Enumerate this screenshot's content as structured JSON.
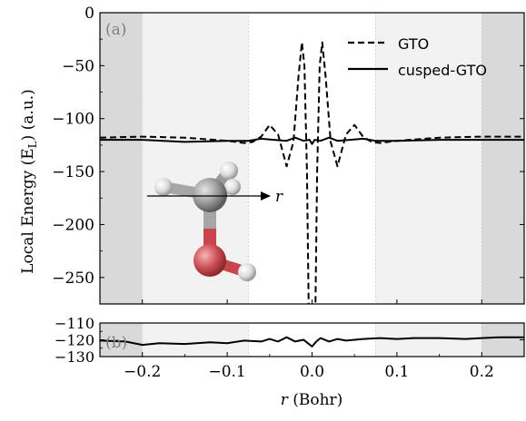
{
  "chart_data": [
    {
      "panel_label": "(a)",
      "type": "line",
      "xlim": [
        -0.25,
        0.25
      ],
      "ylim": [
        -275,
        0
      ],
      "ylabel": "Local Energy (E",
      "ylabel_sub": "L",
      "ylabel_tail": ") (a.u.)",
      "y_ticks": [
        0,
        -50,
        -100,
        -150,
        -200,
        -250
      ],
      "y_tick_labels": [
        "0",
        "−50",
        "−100",
        "−150",
        "−200",
        "−250"
      ],
      "legend_placement": "top-right",
      "shaded_regions": [
        {
          "from": -0.25,
          "to": -0.2,
          "shade": "#d9d9d9"
        },
        {
          "from": -0.2,
          "to": -0.075,
          "shade": "#f2f2f2"
        },
        {
          "from": 0.075,
          "to": 0.2,
          "shade": "#f2f2f2"
        },
        {
          "from": 0.2,
          "to": 0.25,
          "shade": "#d9d9d9"
        }
      ],
      "inset_axis_label": "r",
      "series": [
        {
          "name": "GTO",
          "style": "dashed",
          "color": "#000000",
          "x": [
            -0.25,
            -0.2,
            -0.15,
            -0.1,
            -0.08,
            -0.07,
            -0.06,
            -0.05,
            -0.04,
            -0.03,
            -0.022,
            -0.016,
            -0.012,
            -0.009,
            -0.006,
            -0.004,
            -0.002,
            0.0,
            0.002,
            0.004,
            0.006,
            0.009,
            0.012,
            0.016,
            0.022,
            0.03,
            0.04,
            0.05,
            0.06,
            0.07,
            0.08,
            0.1,
            0.15,
            0.2,
            0.25
          ],
          "y": [
            -118,
            -117,
            -118,
            -121,
            -123,
            -122,
            -117,
            -106,
            -115,
            -145,
            -122,
            -60,
            -28,
            -50,
            -150,
            -280,
            -280,
            -280,
            -280,
            -280,
            -150,
            -50,
            -28,
            -60,
            -122,
            -145,
            -115,
            -106,
            -117,
            -122,
            -123,
            -121,
            -118,
            -117,
            -117
          ]
        },
        {
          "name": "cusped-GTO",
          "style": "solid",
          "color": "#000000",
          "x": [
            -0.25,
            -0.2,
            -0.15,
            -0.1,
            -0.075,
            -0.06,
            -0.045,
            -0.03,
            -0.02,
            -0.01,
            -0.003,
            0.0,
            0.003,
            0.01,
            0.02,
            0.03,
            0.045,
            0.06,
            0.075,
            0.1,
            0.15,
            0.2,
            0.25
          ],
          "y": [
            -120,
            -120,
            -122,
            -121,
            -121,
            -119,
            -120,
            -121,
            -118,
            -121,
            -120,
            -124,
            -120,
            -121,
            -118,
            -121,
            -120,
            -119,
            -121,
            -121,
            -120,
            -120,
            -120
          ]
        }
      ]
    },
    {
      "panel_label": "(b)",
      "type": "line",
      "xlim": [
        -0.25,
        0.25
      ],
      "ylim": [
        -130,
        -110
      ],
      "xlabel_var": "r",
      "xlabel_tail": " (Bohr)",
      "y_ticks": [
        -110,
        -120,
        -130
      ],
      "y_tick_labels": [
        "−110",
        "−120",
        "−130"
      ],
      "x_ticks": [
        -0.2,
        -0.1,
        0.0,
        0.1,
        0.2
      ],
      "x_tick_labels": [
        "−0.2",
        "−0.1",
        "0.0",
        "0.1",
        "0.2"
      ],
      "shaded_regions": [
        {
          "from": -0.25,
          "to": -0.2,
          "shade": "#d9d9d9"
        },
        {
          "from": -0.2,
          "to": -0.075,
          "shade": "#f2f2f2"
        },
        {
          "from": 0.075,
          "to": 0.2,
          "shade": "#f2f2f2"
        },
        {
          "from": 0.2,
          "to": 0.25,
          "shade": "#d9d9d9"
        }
      ],
      "series": [
        {
          "name": "cusped-GTO",
          "style": "solid",
          "color": "#000000",
          "x": [
            -0.25,
            -0.22,
            -0.2,
            -0.18,
            -0.15,
            -0.12,
            -0.1,
            -0.08,
            -0.06,
            -0.05,
            -0.04,
            -0.03,
            -0.02,
            -0.01,
            -0.005,
            0.0,
            0.005,
            0.01,
            0.02,
            0.03,
            0.04,
            0.05,
            0.06,
            0.08,
            0.1,
            0.12,
            0.15,
            0.18,
            0.2,
            0.22,
            0.25
          ],
          "y": [
            -120.5,
            -121,
            -123,
            -122,
            -122.5,
            -121.5,
            -122,
            -120.5,
            -121,
            -119.5,
            -121,
            -118.5,
            -121,
            -120,
            -122,
            -124,
            -121,
            -119,
            -121,
            -119.5,
            -120.5,
            -120,
            -119.5,
            -119,
            -119.5,
            -119,
            -119,
            -119.5,
            -119,
            -118.5,
            -118.5
          ]
        }
      ]
    }
  ],
  "colors": {
    "carbon": "#8c8c8c",
    "oxygen": "#c8454b",
    "hydrogen": "#d9d9d9",
    "bond_carbon": "#a6a6a6",
    "bond_oxygen": "#c8454b"
  },
  "icons": [
    "methanol-molecule-icon"
  ]
}
